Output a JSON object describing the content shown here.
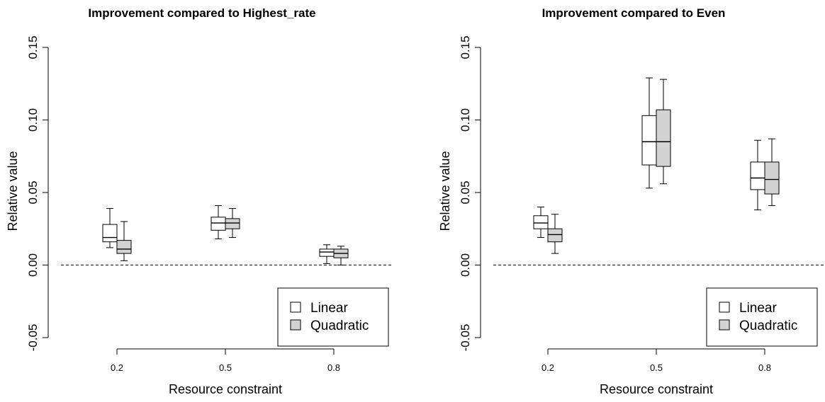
{
  "colors": {
    "linear_fill": "#ffffff",
    "quadratic_fill": "#d3d3d3",
    "stroke": "#000000",
    "background": "#ffffff"
  },
  "chart_data": [
    {
      "type": "box",
      "title": "Improvement compared to Highest_rate",
      "xlabel": "Resource constraint",
      "ylabel": "Relative value",
      "categories": [
        "0.2",
        "0.5",
        "0.8"
      ],
      "yticks": [
        "-0.05",
        "0.00",
        "0.05",
        "0.10",
        "0.15"
      ],
      "ylim": [
        -0.05,
        0.15
      ],
      "reference_line": {
        "y": 0.0,
        "style": "dashed"
      },
      "legend_position": "bottom-right",
      "grid": false,
      "series": [
        {
          "name": "Linear",
          "color": "#ffffff",
          "boxes": [
            {
              "min": 0.012,
              "q1": 0.016,
              "median": 0.019,
              "q3": 0.028,
              "max": 0.039
            },
            {
              "min": 0.018,
              "q1": 0.024,
              "median": 0.029,
              "q3": 0.033,
              "max": 0.041
            },
            {
              "min": 0.001,
              "q1": 0.006,
              "median": 0.009,
              "q3": 0.011,
              "max": 0.014
            }
          ]
        },
        {
          "name": "Quadratic",
          "color": "#d3d3d3",
          "boxes": [
            {
              "min": 0.003,
              "q1": 0.008,
              "median": 0.011,
              "q3": 0.017,
              "max": 0.03
            },
            {
              "min": 0.019,
              "q1": 0.025,
              "median": 0.029,
              "q3": 0.032,
              "max": 0.039
            },
            {
              "min": 0.0,
              "q1": 0.005,
              "median": 0.008,
              "q3": 0.011,
              "max": 0.013
            }
          ]
        }
      ]
    },
    {
      "type": "box",
      "title": "Improvement compared to Even",
      "xlabel": "Resource constraint",
      "ylabel": "Relative value",
      "categories": [
        "0.2",
        "0.5",
        "0.8"
      ],
      "yticks": [
        "-0.05",
        "0.00",
        "0.05",
        "0.10",
        "0.15"
      ],
      "ylim": [
        -0.05,
        0.15
      ],
      "reference_line": {
        "y": 0.0,
        "style": "dashed"
      },
      "legend_position": "bottom-right",
      "grid": false,
      "series": [
        {
          "name": "Linear",
          "color": "#ffffff",
          "boxes": [
            {
              "min": 0.019,
              "q1": 0.025,
              "median": 0.029,
              "q3": 0.034,
              "max": 0.04
            },
            {
              "min": 0.053,
              "q1": 0.069,
              "median": 0.085,
              "q3": 0.103,
              "max": 0.129
            },
            {
              "min": 0.038,
              "q1": 0.052,
              "median": 0.06,
              "q3": 0.071,
              "max": 0.086
            }
          ]
        },
        {
          "name": "Quadratic",
          "color": "#d3d3d3",
          "boxes": [
            {
              "min": 0.008,
              "q1": 0.016,
              "median": 0.021,
              "q3": 0.025,
              "max": 0.035
            },
            {
              "min": 0.056,
              "q1": 0.068,
              "median": 0.085,
              "q3": 0.107,
              "max": 0.128
            },
            {
              "min": 0.041,
              "q1": 0.049,
              "median": 0.059,
              "q3": 0.071,
              "max": 0.087
            }
          ]
        }
      ]
    }
  ]
}
